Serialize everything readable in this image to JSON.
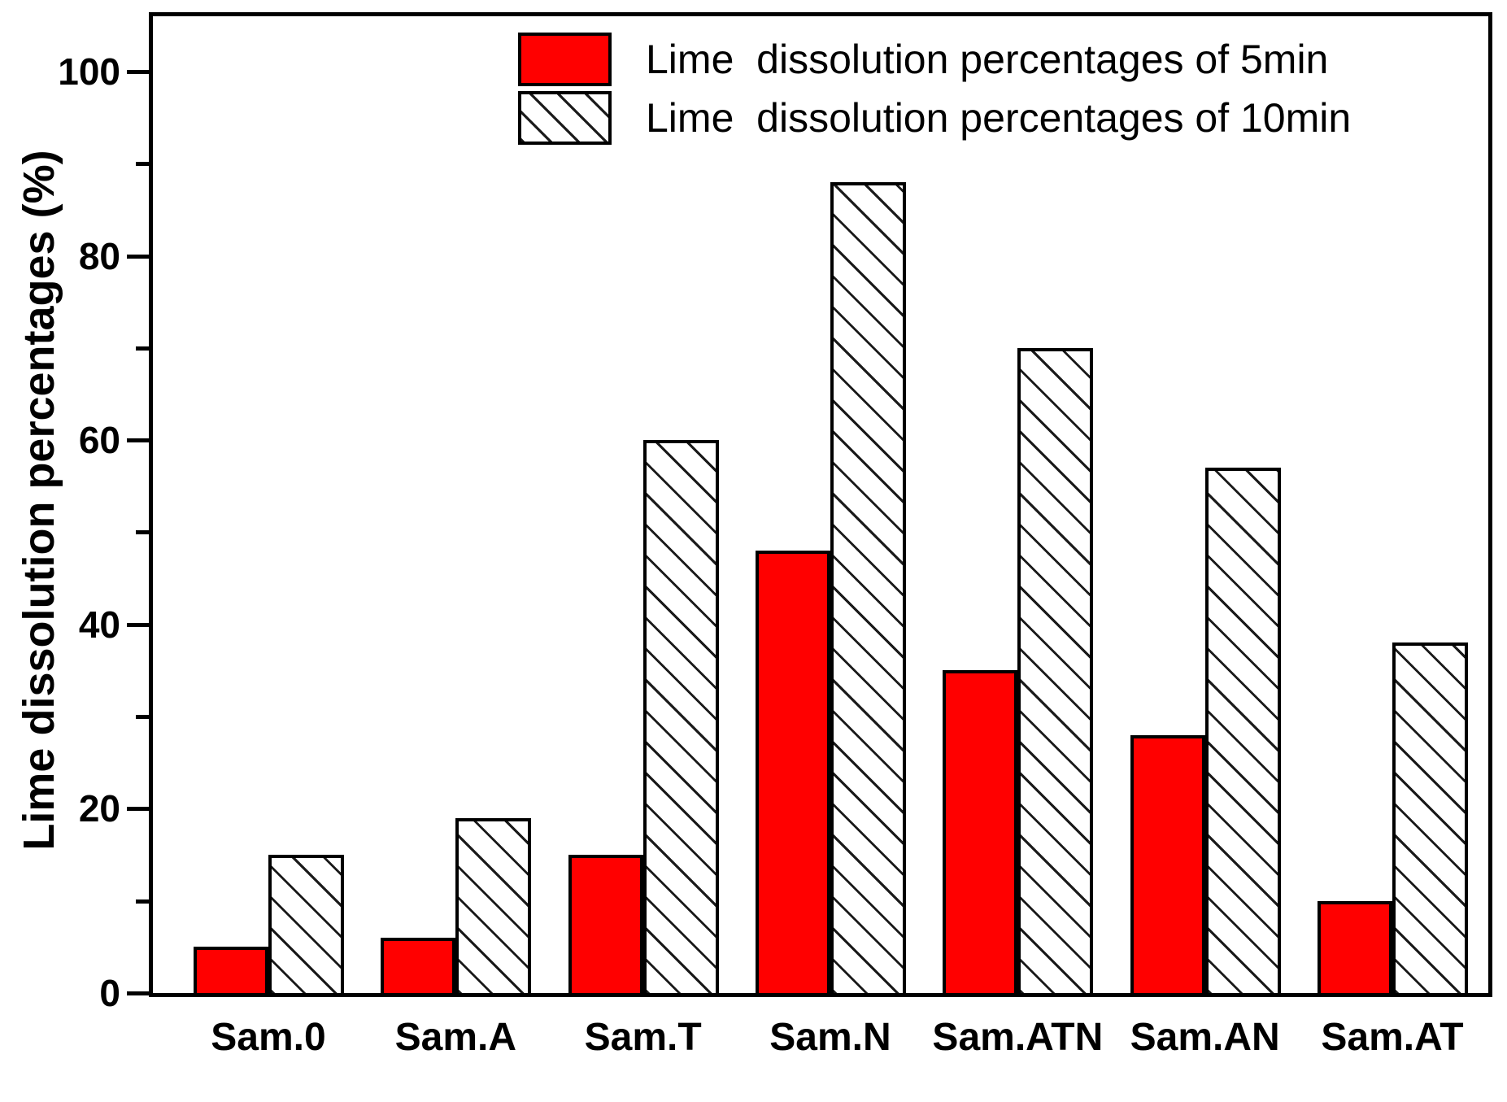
{
  "chart_data": {
    "type": "bar",
    "title": "",
    "categories": [
      "Sam.0",
      "Sam.A",
      "Sam.T",
      "Sam.N",
      "Sam.ATN",
      "Sam.AN",
      "Sam.AT"
    ],
    "series": [
      {
        "name": "Lime  dissolution percentages of 5min",
        "style": "solid",
        "color": "#ff0000",
        "values": [
          5,
          6,
          15,
          48,
          35,
          28,
          10
        ]
      },
      {
        "name": "Lime  dissolution percentages of 10min",
        "style": "hatched",
        "color": "#ffffff",
        "values": [
          15,
          19,
          60,
          88,
          70,
          57,
          38
        ]
      }
    ],
    "xlabel": "",
    "ylabel": "Lime dissolution percentages (%)",
    "ylim": [
      0,
      106
    ],
    "yticks_major": [
      0,
      20,
      40,
      60,
      80,
      100
    ],
    "yticks_minor": [
      10,
      30,
      50,
      70,
      90
    ],
    "grid": false,
    "legend_position": "top-center-inside",
    "colors": {
      "bar_fill_5min": "#ff0000",
      "bar_stroke": "#000000",
      "hatch_line": "#1a1a1a",
      "axis": "#000000",
      "background": "#ffffff"
    }
  }
}
